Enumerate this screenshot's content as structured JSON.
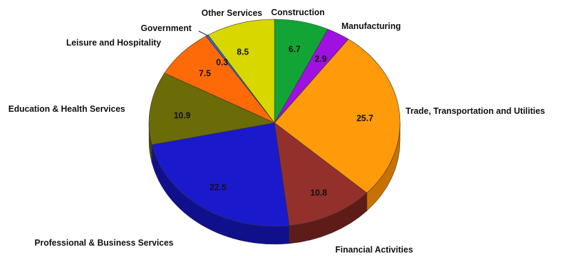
{
  "chart_data": {
    "type": "pie",
    "title": "",
    "categories": [
      "Construction",
      "Manufacturing",
      "Trade, Transportation and Utilities",
      "Financial Activities",
      "Professional & Business Services",
      "Education & Health Services",
      "Leisure and Hospitality",
      "Government",
      "Other Services"
    ],
    "values": [
      6.7,
      2.9,
      25.7,
      10.8,
      22.5,
      10.9,
      7.5,
      0.3,
      8.5
    ],
    "value_labels": [
      "6.7",
      "2.9",
      "25.7",
      "10.8",
      "22.5",
      "10.9",
      "7.5",
      "0.3",
      "8.5"
    ],
    "colors": [
      "#12a536",
      "#a010e0",
      "#ff9a0a",
      "#94302c",
      "#1a1acc",
      "#6b6b08",
      "#ff6a08",
      "#2a68d8",
      "#d8d800"
    ],
    "side_colors": [
      "#0b7a26",
      "#700aa0",
      "#c77200",
      "#5e1c19",
      "#10108c",
      "#454504",
      "#c24e04",
      "#1b4a9c",
      "#a3a300"
    ],
    "style": "3d",
    "legend": "none"
  }
}
